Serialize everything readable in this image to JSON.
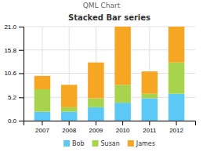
{
  "chart_data": {
    "type": "bar",
    "stacked": true,
    "title": "Stacked Bar series",
    "annotations": [
      "QML Chart"
    ],
    "categories": [
      "2007",
      "2008",
      "2009",
      "2010",
      "2011",
      "2012"
    ],
    "series": [
      {
        "name": "Bob",
        "color": "#5BC8F5",
        "values": [
          2,
          2,
          3,
          4,
          5,
          6
        ]
      },
      {
        "name": "Susan",
        "color": "#A8D44D",
        "values": [
          5,
          1,
          2,
          4,
          1,
          7
        ]
      },
      {
        "name": "James",
        "color": "#F5A623",
        "values": [
          3,
          5,
          8,
          13,
          5,
          8
        ]
      }
    ],
    "ylim": [
      0,
      21
    ],
    "yticks": [
      {
        "value": 0,
        "label": "0.0"
      },
      5.2,
      10.6,
      15.8,
      {
        "value": 21,
        "label": "21.0"
      }
    ],
    "grid": true,
    "legend": "bottom"
  }
}
